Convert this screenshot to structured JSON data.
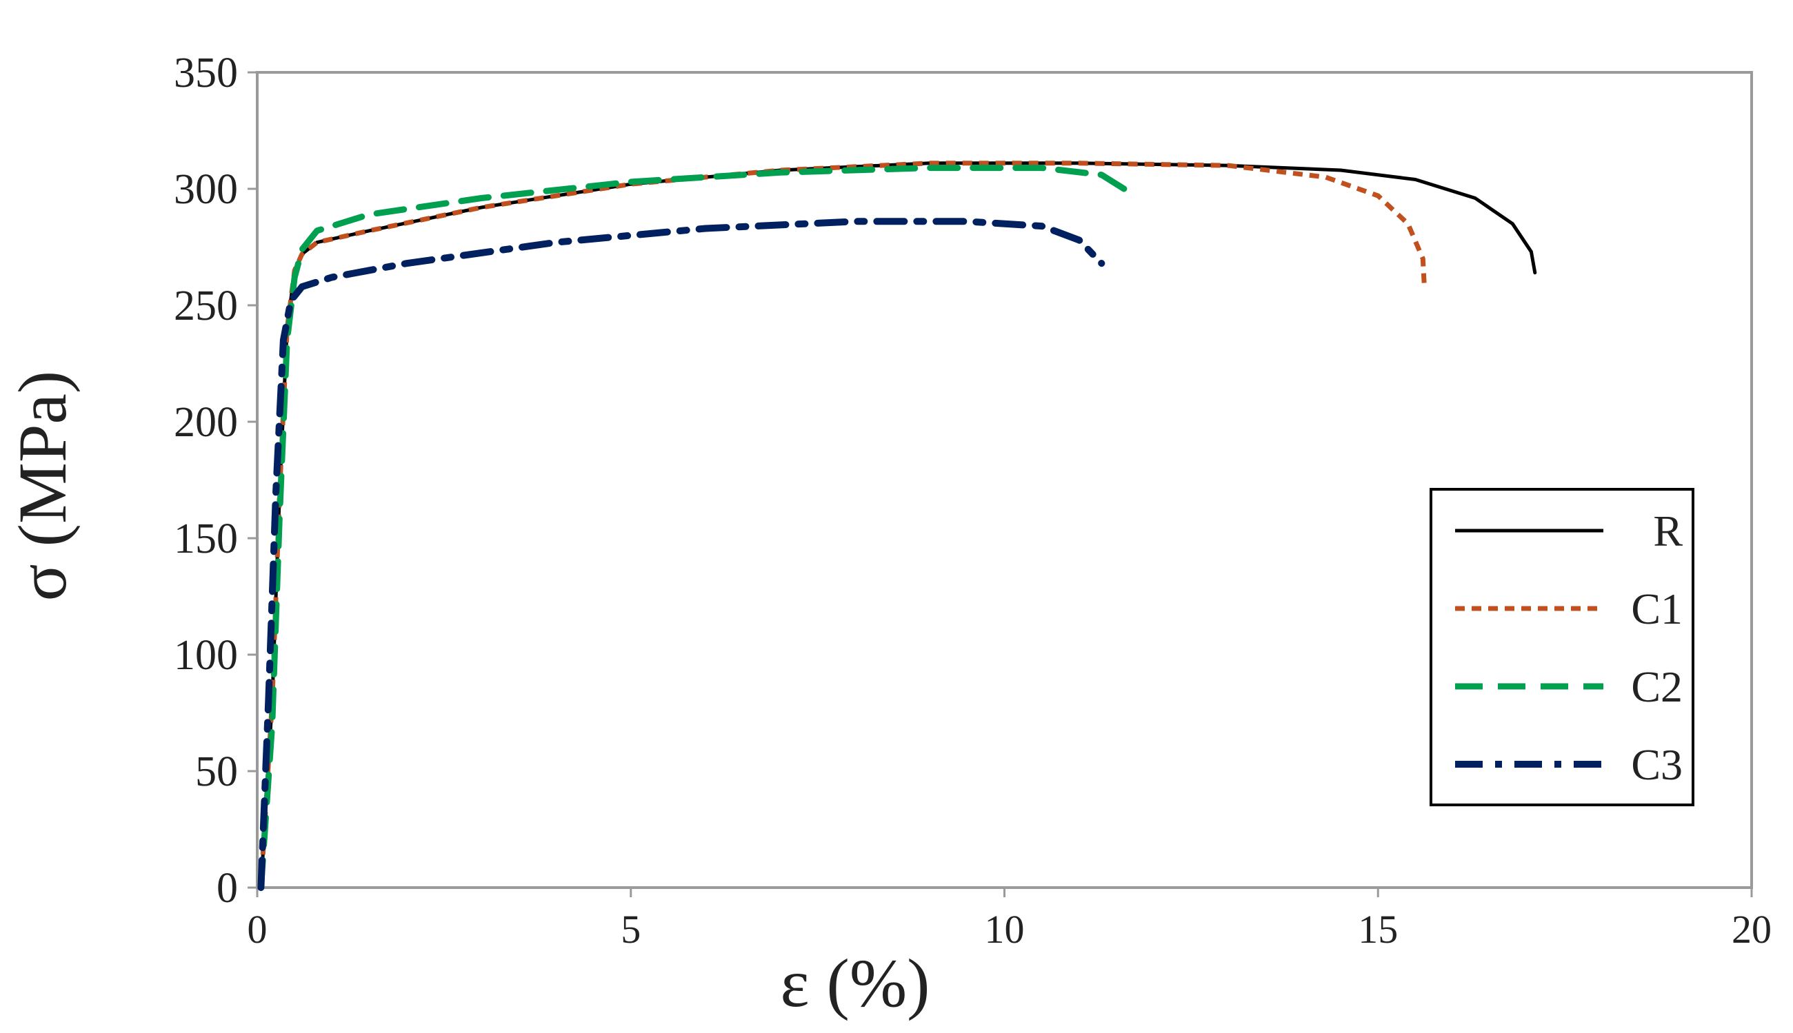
{
  "chart_data": {
    "type": "line",
    "title": "",
    "xlabel": "ε (%)",
    "ylabel": "σ (MPa)",
    "xlim": [
      0,
      20
    ],
    "ylim": [
      0,
      350
    ],
    "x_ticks": [
      "0",
      "5",
      "10",
      "15",
      "20"
    ],
    "y_ticks": [
      "0",
      "50",
      "100",
      "150",
      "200",
      "250",
      "300",
      "350"
    ],
    "grid": false,
    "legend_position": "lower-right",
    "series": [
      {
        "name": "R",
        "color": "#000000",
        "dash": "solid",
        "x": [
          0.05,
          0.2,
          0.3,
          0.4,
          0.5,
          0.6,
          0.8,
          1.5,
          3,
          5,
          7,
          9,
          11,
          13,
          14.5,
          15.5,
          16.3,
          16.8,
          17.05,
          17.1
        ],
        "y": [
          0,
          80,
          170,
          240,
          265,
          272,
          277,
          282,
          292,
          302,
          308,
          311,
          311,
          310,
          308,
          304,
          296,
          285,
          273,
          264
        ]
      },
      {
        "name": "C1",
        "color": "#c0501e",
        "dash": "dotted",
        "x": [
          0.05,
          0.2,
          0.3,
          0.4,
          0.5,
          0.6,
          0.8,
          1.5,
          3,
          5,
          7,
          9,
          11,
          13,
          14.3,
          15,
          15.4,
          15.6,
          15.62
        ],
        "y": [
          0,
          80,
          170,
          240,
          265,
          272,
          277,
          282,
          292,
          302,
          308,
          311,
          311,
          310,
          305,
          297,
          285,
          270,
          258
        ]
      },
      {
        "name": "C2",
        "color": "#00a050",
        "dash": "dashed",
        "x": [
          0.05,
          0.2,
          0.3,
          0.4,
          0.5,
          0.6,
          0.8,
          1.5,
          3,
          5,
          7,
          9,
          10.5,
          11.3,
          11.6
        ],
        "y": [
          0,
          70,
          160,
          235,
          262,
          274,
          282,
          289,
          296,
          303,
          307,
          309,
          309,
          306,
          300
        ]
      },
      {
        "name": "C3",
        "color": "#002060",
        "dash": "dashdot",
        "x": [
          0.05,
          0.15,
          0.25,
          0.35,
          0.45,
          0.6,
          1,
          2,
          4,
          6,
          8,
          9.5,
          10.5,
          11,
          11.3
        ],
        "y": [
          0,
          80,
          170,
          235,
          252,
          258,
          262,
          268,
          277,
          283,
          286,
          286,
          284,
          278,
          268
        ]
      }
    ]
  }
}
